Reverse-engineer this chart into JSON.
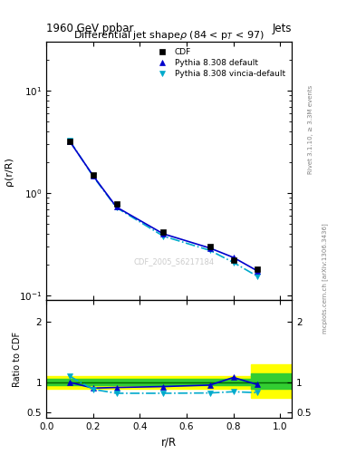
{
  "title": "Differential jet shapeρ (84 < p$_T$ < 97)",
  "header_left": "1960 GeV ppbar",
  "header_right": "Jets",
  "watermark": "CDF_2005_S6217184",
  "rivet_label": "Rivet 3.1.10, ≥ 3.3M events",
  "arxiv_label": "mcplots.cern.ch [arXiv:1306.3436]",
  "xlabel": "r/R",
  "ylabel_main": "ρ(r/R)",
  "ylabel_ratio": "Ratio to CDF",
  "x_data": [
    0.1,
    0.2,
    0.3,
    0.5,
    0.7,
    0.8,
    0.9
  ],
  "cdf_y": [
    3.2,
    1.5,
    0.78,
    0.42,
    0.3,
    0.22,
    0.18
  ],
  "pythia_default_y": [
    3.2,
    1.48,
    0.73,
    0.4,
    0.29,
    0.235,
    0.175
  ],
  "pythia_vincia_y": [
    3.25,
    1.46,
    0.72,
    0.38,
    0.275,
    0.21,
    0.155
  ],
  "ratio_default_y": [
    1.0,
    0.905,
    0.915,
    0.93,
    0.955,
    1.08,
    0.965
  ],
  "ratio_vincia_y": [
    1.1,
    0.885,
    0.82,
    0.82,
    0.825,
    0.845,
    0.83
  ],
  "cdf_color": "black",
  "pythia_default_color": "#0000cc",
  "pythia_vincia_color": "#00aacc",
  "band_yellow_lo": 0.9,
  "band_yellow_hi": 1.1,
  "band_green_lo": 0.95,
  "band_green_hi": 1.05,
  "band_yellow_last_lo": 0.75,
  "band_yellow_last_hi": 1.3,
  "band_green_last_lo": 0.9,
  "band_green_last_hi": 1.15,
  "ylim_main": [
    0.09,
    30
  ],
  "ylim_ratio": [
    0.42,
    2.35
  ],
  "xlim": [
    0.0,
    1.05
  ],
  "ratio_yticks": [
    0.5,
    1.0,
    2.0
  ],
  "ratio_yticklabels": [
    "0.5",
    "1",
    "2"
  ]
}
